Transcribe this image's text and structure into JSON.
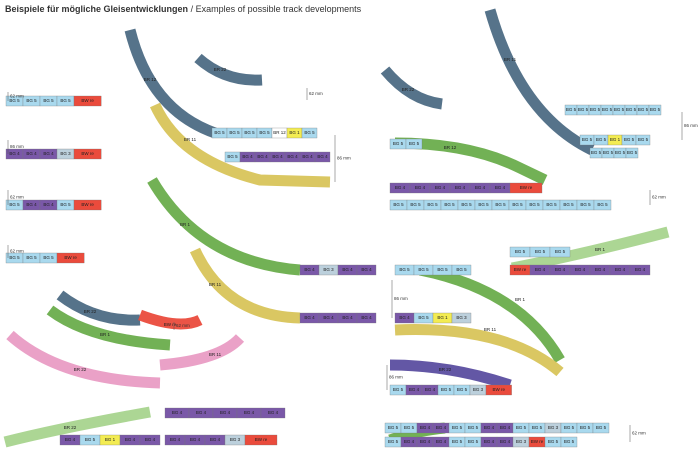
{
  "header": {
    "title_de": "Beispiele für mögliche Gleisentwicklungen",
    "separator": "/",
    "title_en": "Examples of possible track developments"
  },
  "palette": {
    "BG 5": "#a9d9ee",
    "BG 4": "#7a58a8",
    "BG 3": "#bcd0dc",
    "BG 2": "#a8d48e",
    "BG 1": "#f3ec52",
    "BR 12": "#ffffff",
    "BW re": "#ea4b3c"
  },
  "rows": [
    {
      "pieces": [
        "BG 5",
        "BG 5",
        "BG 5",
        "BG 5",
        "BW re"
      ]
    },
    {
      "pieces": [
        "BG 4",
        "BG 4",
        "BG 4",
        "BG 3",
        "BW re"
      ]
    },
    {
      "pieces": [
        "BG 5",
        "BG 4",
        "BG 4",
        "BG 5",
        "BW re"
      ]
    },
    {
      "pieces": [
        "BG 5",
        "BG 5",
        "BG 5",
        "BW re"
      ]
    },
    {
      "pieces": [
        "BG 5",
        "BG 5",
        "BG 5",
        "BG 5",
        "BR 12",
        "BG 1",
        "BG 5"
      ]
    },
    {
      "pieces": [
        "BG 5",
        "BG 4",
        "BG 4",
        "BG 4",
        "BG 4",
        "BG 4",
        "BG 4"
      ]
    },
    {
      "pieces": [
        "BG 4",
        "BG 3",
        "BG 4",
        "BG 4"
      ]
    },
    {
      "pieces": [
        "BG 5",
        "BG 5",
        "BG 5",
        "BG 5"
      ]
    },
    {
      "pieces": [
        "BG 4",
        "BG 4",
        "BG 4",
        "BG 4"
      ]
    },
    {
      "pieces": [
        "BG 4",
        "BG 5",
        "BG 1",
        "BG 3"
      ]
    },
    {
      "pieces": [
        "BG 5",
        "BG 5"
      ]
    },
    {
      "pieces": [
        "BG 4",
        "BG 4",
        "BG 4",
        "BG 4",
        "BG 4",
        "BG 4",
        "BW re"
      ]
    },
    {
      "pieces": [
        "BG 5",
        "BG 5",
        "BG 5",
        "BG 5",
        "BG 5",
        "BG 5",
        "BG 5",
        "BG 5",
        "BG 5",
        "BG 5",
        "BG 5",
        "BG 5",
        "BG 5"
      ]
    },
    {
      "pieces": [
        "BG 5",
        "BG 5",
        "BG 5",
        "BG 5",
        "BG 5",
        "BG 5",
        "BG 5",
        "BG 5"
      ]
    },
    {
      "pieces": [
        "BG 5",
        "BG 5",
        "BG 1",
        "BG 5",
        "BG 5"
      ]
    },
    {
      "pieces": [
        "BG 5",
        "BG 5",
        "BG 5",
        "BG 5"
      ]
    },
    {
      "pieces": [
        "BG 5",
        "BG 5",
        "BG 5"
      ]
    },
    {
      "pieces": [
        "BW re",
        "BG 4",
        "BG 4",
        "BG 4",
        "BG 4",
        "BG 4",
        "BG 4"
      ]
    },
    {
      "pieces": [
        "BG 5",
        "BG 4",
        "BG 4",
        "BG 5",
        "BG 5",
        "BG 3",
        "BW re"
      ]
    },
    {
      "pieces": [
        "BG 5",
        "BG 5",
        "BG 4",
        "BG 4",
        "BG 5",
        "BG 5",
        "BG 4",
        "BG 4",
        "BG 5",
        "BG 5",
        "BG 3",
        "BG 5",
        "BG 5",
        "BG 5"
      ]
    },
    {
      "pieces": [
        "BG 5",
        "BG 4",
        "BG 4",
        "BG 4",
        "BG 5",
        "BG 5",
        "BG 4",
        "BG 4",
        "BG 3",
        "BW re",
        "BG 5",
        "BG 5"
      ]
    },
    {
      "pieces": [
        "BG 4",
        "BG 4",
        "BG 4",
        "BG 4",
        "BG 4"
      ]
    },
    {
      "pieces": [
        "BG 4",
        "BG 4",
        "BG 4",
        "BG 3",
        "BW re"
      ]
    },
    {
      "pieces": [
        "BG 4",
        "BG 5",
        "BG 1",
        "BG 4",
        "BG 4"
      ]
    }
  ],
  "curves": [
    {
      "label": "BR 12",
      "color": "#4d6b84"
    },
    {
      "label": "BR 11",
      "color": "#d8c45a"
    },
    {
      "label": "BR 1",
      "color": "#6aad4c"
    },
    {
      "label": "BR 11",
      "color": "#d8c45a"
    },
    {
      "label": "BR 22",
      "color": "#4d6b84"
    },
    {
      "label": "BR 11",
      "color": "#4d6b84"
    },
    {
      "label": "BR 22",
      "color": "#4d6b84"
    },
    {
      "label": "BR 12",
      "color": "#6aad4c"
    },
    {
      "label": "BR 1",
      "color": "#6aad4c"
    },
    {
      "label": "BR 11",
      "color": "#d8c45a"
    },
    {
      "label": "BR 22",
      "color": "#4d6b84"
    },
    {
      "label": "BR 22",
      "color": "#e99cc4"
    },
    {
      "label": "BR 1",
      "color": "#6aad4c"
    },
    {
      "label": "BW re",
      "color": "#ea4b3c"
    },
    {
      "label": "BR 22",
      "color": "#5b4ea0"
    },
    {
      "label": "BR 22",
      "color": "#a8d48e"
    },
    {
      "label": "BR 1",
      "color": "#a8d48e"
    },
    {
      "label": "BR 11",
      "color": "#e99cc4"
    },
    {
      "label": "BR 1",
      "color": "#6aad4c"
    }
  ],
  "dimensions": [
    "62 mm",
    "86 mm",
    "62 mm",
    "62 mm",
    "62 mm",
    "86 mm",
    "62 mm",
    "86 mm",
    "86 mm",
    "62 mm",
    "86 mm",
    "62 mm"
  ]
}
